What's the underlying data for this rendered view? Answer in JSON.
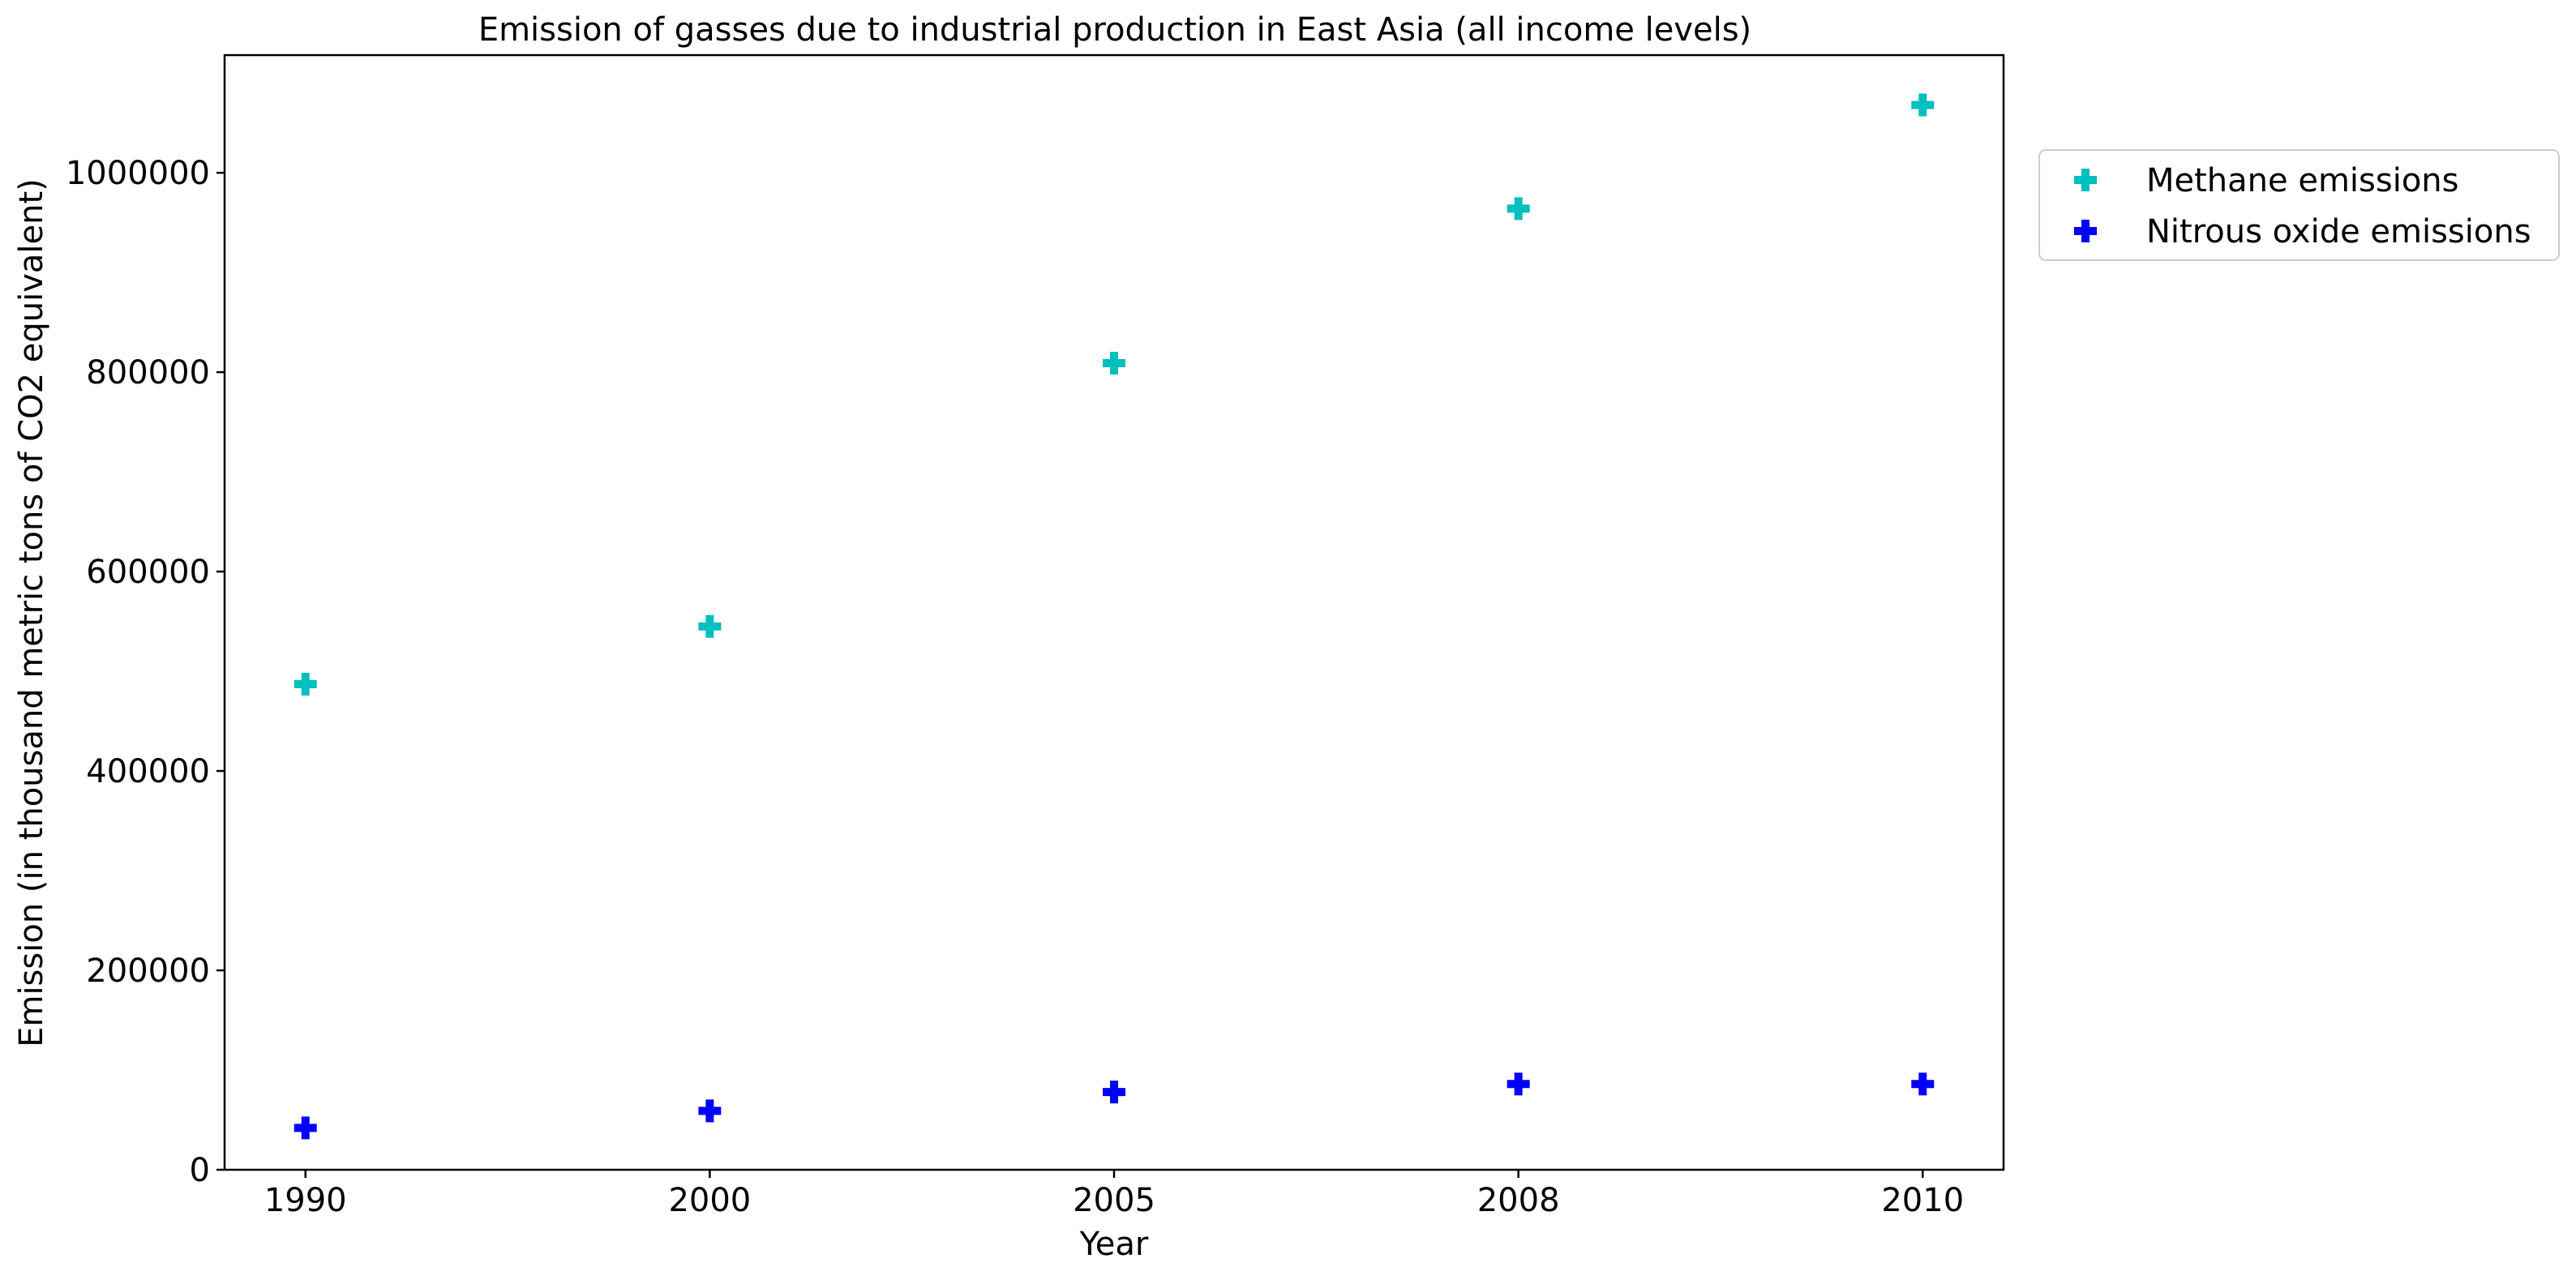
{
  "chart_data": {
    "type": "scatter",
    "title": "Emission of gasses due to industrial production in East Asia (all income levels)",
    "xlabel": "Year",
    "ylabel": "Emission (in thousand metric tons of CO2 equivalent)",
    "categories": [
      "1990",
      "2000",
      "2005",
      "2008",
      "2010"
    ],
    "yticks": [
      0,
      200000,
      400000,
      600000,
      800000,
      1000000
    ],
    "ylim": [
      0,
      1118000
    ],
    "grid": false,
    "legend_position": "outside-top-right",
    "series": [
      {
        "name": "Methane emissions",
        "color": "#00bfbf",
        "marker": "plus-filled",
        "values": [
          487000,
          545000,
          809000,
          964000,
          1068000
        ]
      },
      {
        "name": "Nitrous oxide emissions",
        "color": "#0000ff",
        "marker": "plus-filled",
        "values": [
          42000,
          59000,
          78000,
          86000,
          86000
        ]
      }
    ]
  }
}
